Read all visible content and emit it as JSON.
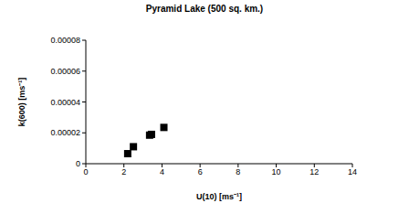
{
  "chart_data": {
    "type": "scatter",
    "title": "Pyramid Lake (500 sq. km.)",
    "x_label": "U(10) [ms⁻¹]",
    "y_label": "k(600) [ms⁻¹]",
    "x": [
      2.2,
      2.5,
      3.35,
      3.45,
      4.1
    ],
    "values": [
      6.5e-06,
      1.1e-05,
      1.85e-05,
      1.9e-05,
      2.35e-05
    ],
    "color": "#000000",
    "marker": "square",
    "xlim": [
      0,
      14
    ],
    "xticks": [
      0,
      2,
      4,
      6,
      8,
      10,
      12,
      14
    ],
    "ylim": [
      0,
      8e-05
    ],
    "yticks": [
      0,
      2e-05,
      4e-05,
      6e-05,
      8e-05
    ],
    "grid": false
  }
}
